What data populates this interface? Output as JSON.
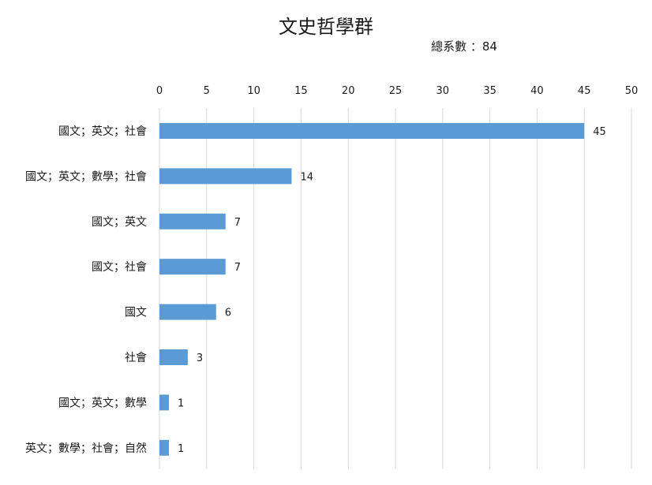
{
  "chart_data": {
    "type": "bar",
    "orientation": "horizontal",
    "title": "文史哲學群",
    "subtitle": "總系數 ：84",
    "categories": [
      "國文；英文；社會",
      "國文；英文；數學；社會",
      "國文；英文",
      "國文；社會",
      "國文",
      "社會",
      "國文；英文；數學",
      "英文；數學；社會；自然"
    ],
    "values": [
      45,
      14,
      7,
      7,
      6,
      3,
      1,
      1
    ],
    "xlim": [
      0,
      50
    ],
    "ticks": [
      0,
      5,
      10,
      15,
      20,
      25,
      30,
      35,
      40,
      45,
      50
    ],
    "x_axis_position": "top",
    "grid": true,
    "data_labels": true,
    "color": "#5b9bd5"
  }
}
